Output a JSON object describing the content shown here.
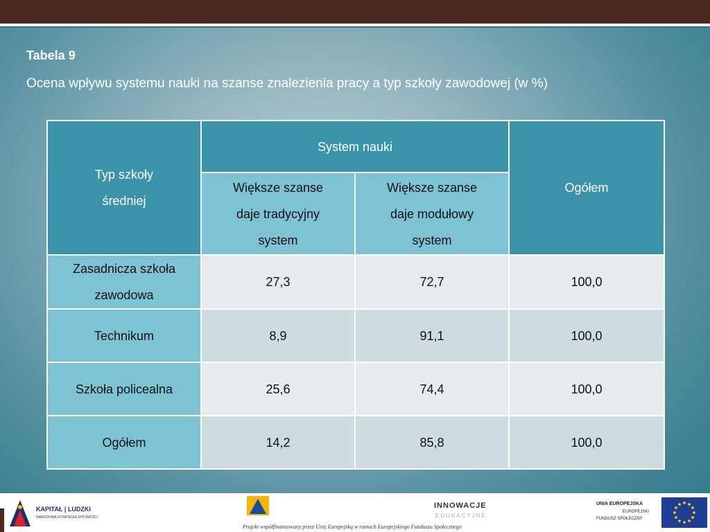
{
  "title": "Tabela 9",
  "subtitle": "Ocena wpływu systemu nauki na szanse znalezienia pracy a typ szkoły zawodowej (w %)",
  "table": {
    "header_type": [
      "Typ szkoły",
      "średniej"
    ],
    "header_system": "System nauki",
    "header_total": "Ogółem",
    "sub_col1": [
      "Większe szanse",
      "daje tradycyjny",
      "system"
    ],
    "sub_col2": [
      "Większe szanse",
      "daje modułowy",
      "system"
    ],
    "rows": [
      {
        "label": [
          "Zasadnicza szkoła",
          "zawodowa"
        ],
        "traditional": "27,3",
        "modular": "72,7",
        "total": "100,0"
      },
      {
        "label": [
          "Technikum"
        ],
        "traditional": "8,9",
        "modular": "91,1",
        "total": "100,0"
      },
      {
        "label": [
          "Szkoła policealna"
        ],
        "traditional": "25,6",
        "modular": "74,4",
        "total": "100,0"
      },
      {
        "label": [
          "Ogółem"
        ],
        "traditional": "14,2",
        "modular": "85,8",
        "total": "100,0"
      }
    ]
  },
  "footer": {
    "kapital_name": "KAPITAŁ | LUDZKI",
    "kapital_sub": "NARODOWA STRATEGIA SPÓJNOŚCI",
    "innowacje_top": "INNOWACJE",
    "innowacje_bottom": "EDUKACYJNE",
    "project_note": "Projekt współfinansowany przez Unię Europejską w ramach Europejskiego Funduszu Społecznego",
    "ue_line1": "UNIA EUROPEJSKA",
    "ue_line2": "EUROPEJSKI",
    "ue_line3": "FUNDUSZ SPOŁECZNY"
  },
  "colors": {
    "top_bar": "#4a2a20",
    "header_dark": "#3a93a8",
    "header_light": "#7ec3d3",
    "cell_light": "#e6ecee",
    "cell_dark": "#cfdcdf"
  }
}
